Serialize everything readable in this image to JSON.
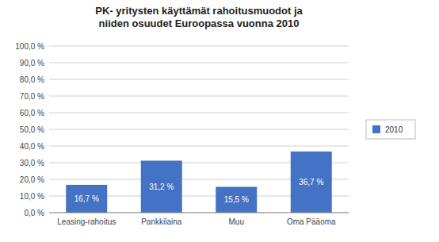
{
  "chart_data": {
    "type": "bar",
    "title": "PK- yritysten käyttämät rahoitusmuodot ja\nniiden osuudet Euroopassa vuonna 2010",
    "categories": [
      "Leasing-rahoitus",
      "Pankkilaina",
      "Muu",
      "Oma Pääoma"
    ],
    "series": [
      {
        "name": "2010",
        "color": "#4472C4",
        "values": [
          16.7,
          31.2,
          15.5,
          36.7
        ],
        "value_labels": [
          "16,7 %",
          "31,2 %",
          "15,5 %",
          "36,7 %"
        ]
      }
    ],
    "ylim": [
      0,
      100
    ],
    "yticks": [
      {
        "value": 0,
        "label": "0,0 %"
      },
      {
        "value": 10,
        "label": "10,0 %"
      },
      {
        "value": 20,
        "label": "20,0 %"
      },
      {
        "value": 30,
        "label": "30,0 %"
      },
      {
        "value": 40,
        "label": "40,0 %"
      },
      {
        "value": 50,
        "label": "50,0 %"
      },
      {
        "value": 60,
        "label": "60,0 %"
      },
      {
        "value": 70,
        "label": "70,0 %"
      },
      {
        "value": 80,
        "label": "80,0 %"
      },
      {
        "value": 90,
        "label": "90,0 %"
      },
      {
        "value": 100,
        "label": "100,0 %"
      }
    ],
    "grid": true,
    "legend": "right",
    "data_labels": true
  }
}
